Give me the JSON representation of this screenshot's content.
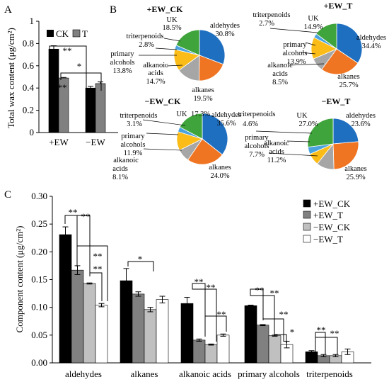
{
  "colors": {
    "CK": "#000000",
    "T": "#808080",
    "plus_ck": "#000000",
    "plus_t": "#808080",
    "minus_ck": "#c0c0c0",
    "minus_t": "#ffffff",
    "pie": {
      "aldehydes": "#1f6fc1",
      "alkanes": "#ef7522",
      "alkanoic acids": "#a6a6a6",
      "primary alcohols": "#fbbc18",
      "triterpenoids": "#4aa3de",
      "UK": "#3fa43b"
    }
  },
  "chart_data": [
    {
      "panel_label": "A",
      "type": "bar",
      "ylabel": "Total wax content (μg/cm²)",
      "ylim": [
        0,
        1.0
      ],
      "yticks": [
        "0",
        "0.2",
        "0.4",
        "0.6",
        "0.8",
        "1"
      ],
      "categories": [
        "+EW",
        "−EW"
      ],
      "series": [
        {
          "name": "CK",
          "values": [
            0.75,
            0.4
          ],
          "errors": [
            0.03,
            0.015
          ]
        },
        {
          "name": "T",
          "values": [
            0.49,
            0.44
          ],
          "errors": [
            0.005,
            0.015
          ]
        }
      ],
      "annotations": [
        "**",
        "**",
        "*"
      ]
    },
    {
      "panel_label": "B",
      "type": "pie",
      "pies": [
        {
          "title": "+EW_CK",
          "slices": [
            {
              "label": "aldehydes",
              "pct": "30.8%",
              "value": 30.8
            },
            {
              "label": "alkanes",
              "pct": "19.5%",
              "value": 19.5
            },
            {
              "label": "alkanoic acids",
              "pct": "14.7%",
              "value": 14.7
            },
            {
              "label": "primary alcohols",
              "pct": "13.8%",
              "value": 13.8
            },
            {
              "label": "triterpenoids",
              "pct": "2.8%",
              "value": 2.8
            },
            {
              "label": "UK",
              "pct": "18.5%",
              "value": 18.5
            }
          ]
        },
        {
          "title": "+EW_T",
          "slices": [
            {
              "label": "aldehydes",
              "pct": "34.4%",
              "value": 34.4
            },
            {
              "label": "alkanes",
              "pct": "25.7%",
              "value": 25.7
            },
            {
              "label": "alkanoic acids",
              "pct": "8.5%",
              "value": 8.5
            },
            {
              "label": "primary alcohols",
              "pct": "13.9%",
              "value": 13.9
            },
            {
              "label": "triterpenoids",
              "pct": "2.7%",
              "value": 2.7
            },
            {
              "label": "UK",
              "pct": "14.9%",
              "value": 14.9
            }
          ]
        },
        {
          "title": "−EW_CK",
          "slices": [
            {
              "label": "aldehydes",
              "pct": "35.6%",
              "value": 35.6
            },
            {
              "label": "alkanes",
              "pct": "24.0%",
              "value": 24.0
            },
            {
              "label": "alkanoic acids",
              "pct": "8.1%",
              "value": 8.1
            },
            {
              "label": "primary alcohols",
              "pct": "11.9%",
              "value": 11.9
            },
            {
              "label": "triterpenoids",
              "pct": "3.1%",
              "value": 3.1
            },
            {
              "label": "UK",
              "pct": "17.3%",
              "value": 17.3
            }
          ]
        },
        {
          "title": "−EW_T",
          "slices": [
            {
              "label": "aldehydes",
              "pct": "23.6%",
              "value": 23.6
            },
            {
              "label": "alkanes",
              "pct": "25.9%",
              "value": 25.9
            },
            {
              "label": "alkanoic acids",
              "pct": "11.2%",
              "value": 11.2
            },
            {
              "label": "primary alcohols",
              "pct": "7.7%",
              "value": 7.7
            },
            {
              "label": "triterpenoids",
              "pct": "4.6%",
              "value": 4.6
            },
            {
              "label": "UK",
              "pct": "27.0%",
              "value": 27.0
            }
          ]
        }
      ]
    },
    {
      "panel_label": "C",
      "type": "bar",
      "ylabel": "Component content (μg/cm²)",
      "ylim": [
        0,
        0.3
      ],
      "yticks": [
        "0.00",
        "0.05",
        "0.10",
        "0.15",
        "0.20",
        "0.25",
        "0.30"
      ],
      "categories": [
        "aldehydes",
        "alkanes",
        "alkanoic acids",
        "primary alcohols",
        "triterpenoids"
      ],
      "series": [
        {
          "name": "+EW_CK",
          "values": [
            0.231,
            0.148,
            0.107,
            0.103,
            0.02
          ],
          "errors": [
            0.014,
            0.022,
            0.011,
            0.001,
            0.002
          ]
        },
        {
          "name": "+EW_T",
          "values": [
            0.167,
            0.124,
            0.041,
            0.068,
            0.013
          ],
          "errors": [
            0.008,
            0.004,
            0.002,
            0.001,
            0.002
          ]
        },
        {
          "name": "−EW_CK",
          "values": [
            0.143,
            0.096,
            0.033,
            0.049,
            0.013
          ],
          "errors": [
            0.001,
            0.004,
            0.001,
            0.001,
            0.002
          ]
        },
        {
          "name": "−EW_T",
          "values": [
            0.104,
            0.114,
            0.05,
            0.033,
            0.02
          ],
          "errors": [
            0.003,
            0.006,
            0.002,
            0.006,
            0.005
          ]
        }
      ],
      "annotations": [
        "**",
        "**",
        "**",
        "**",
        "*",
        "**",
        "**",
        "**",
        "**",
        "**",
        "**",
        "*",
        "**",
        "**"
      ]
    }
  ]
}
